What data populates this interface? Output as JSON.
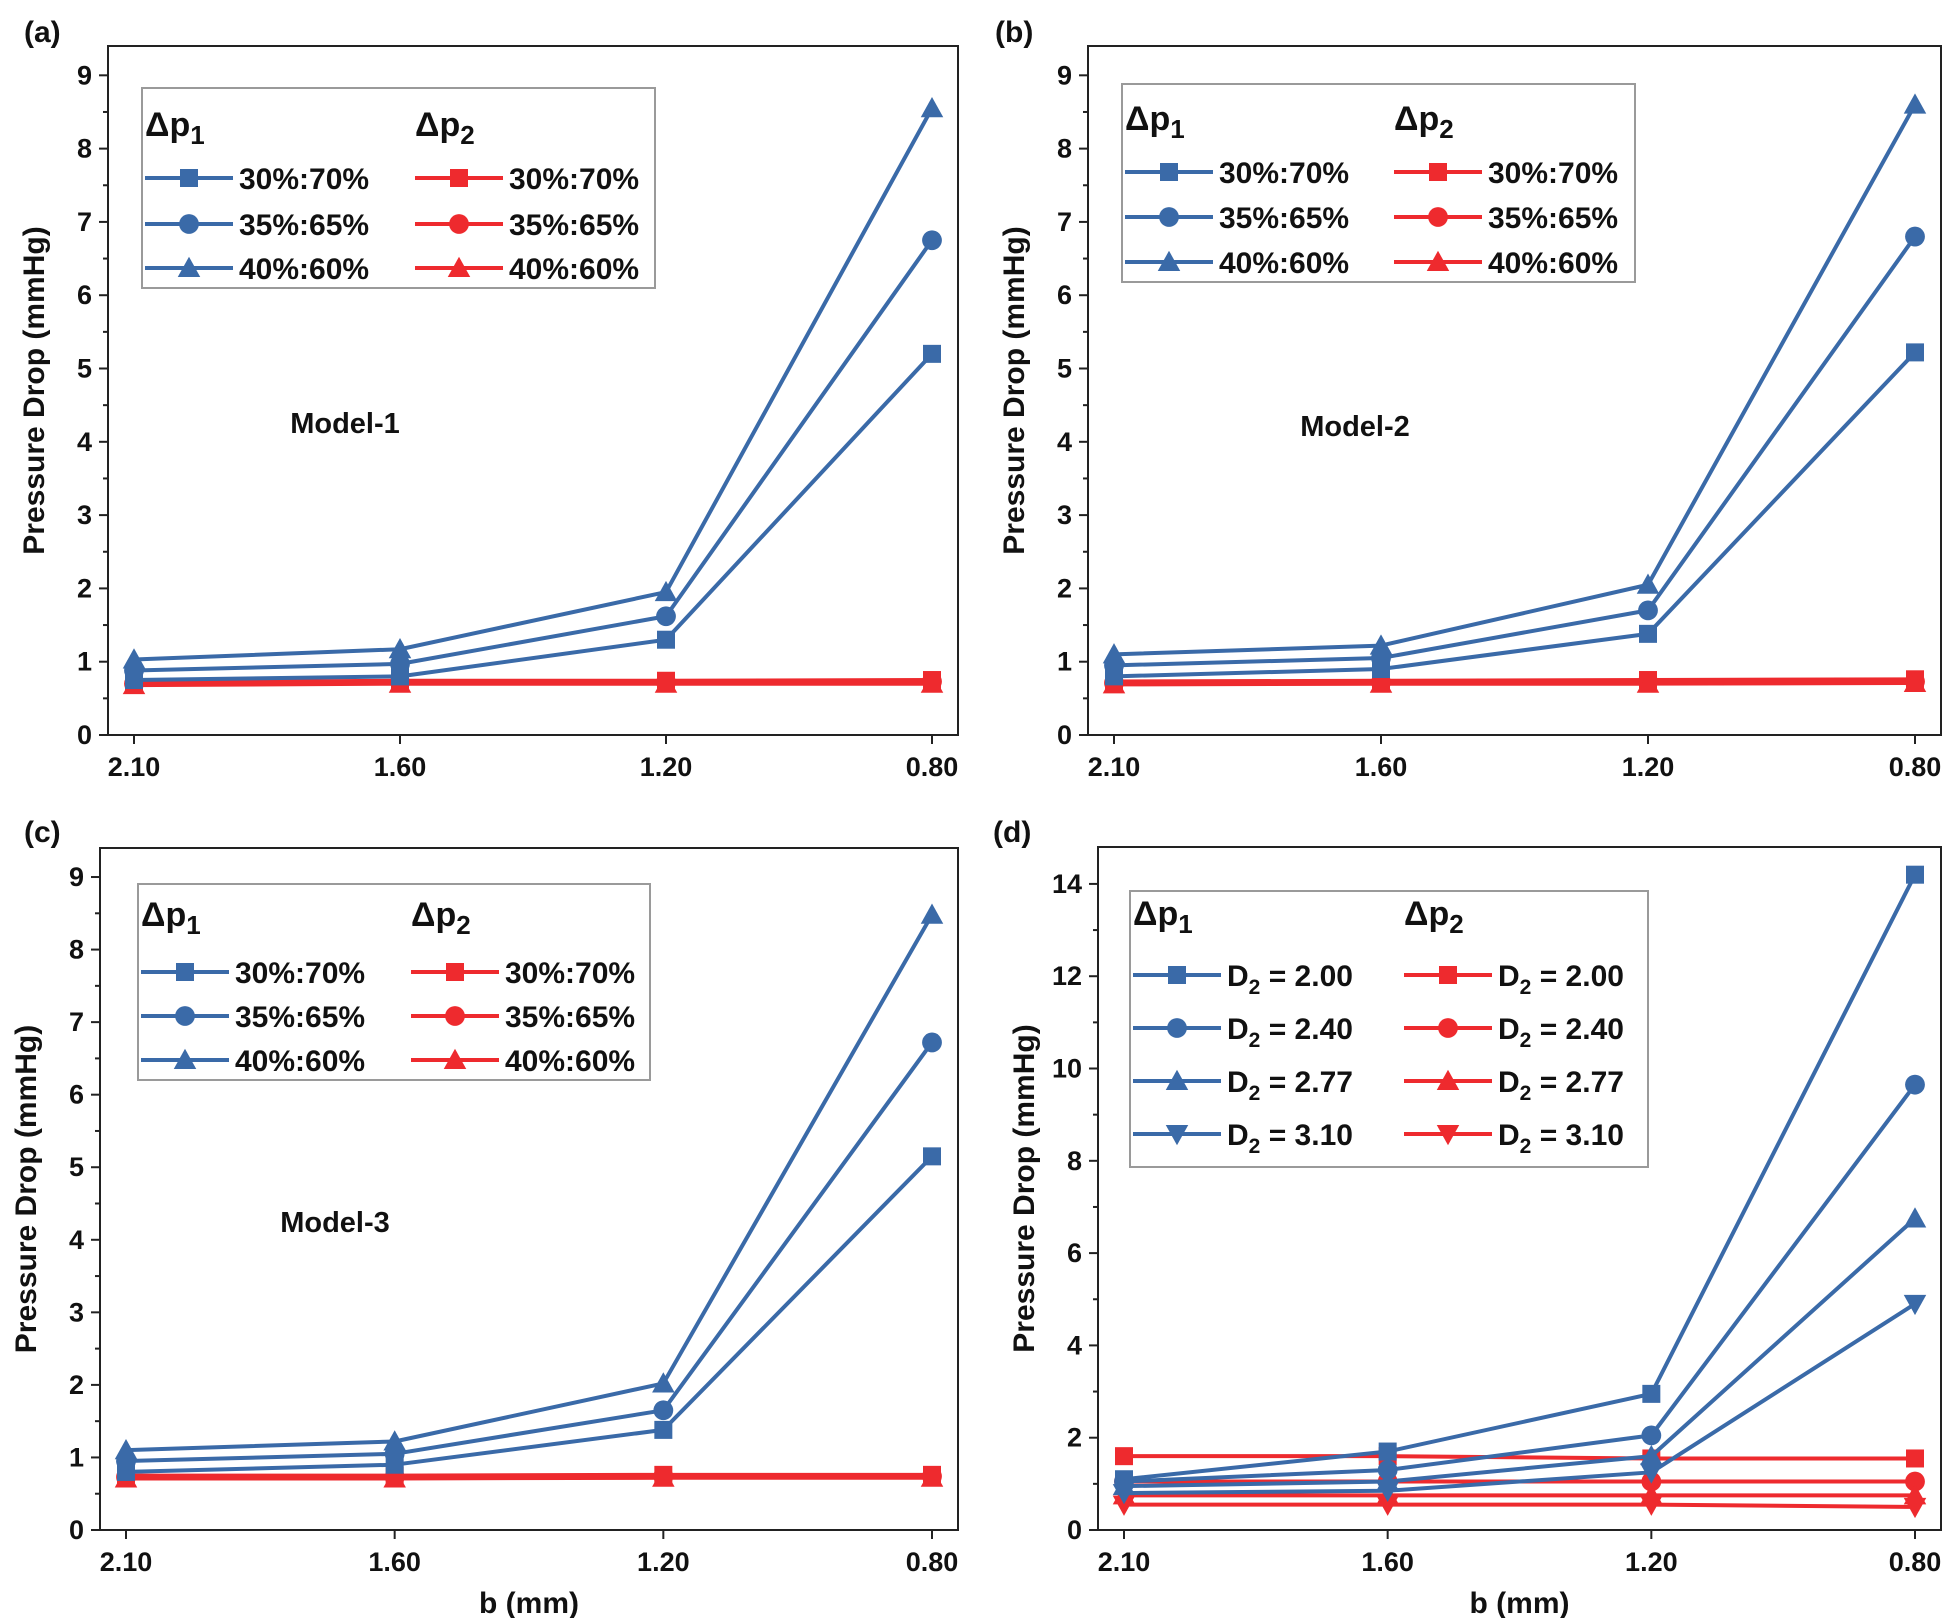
{
  "colors": {
    "blue": "#3a6aa8",
    "red": "#ee2a2e",
    "axis": "#222222",
    "legend_border": "#9a9a9a"
  },
  "chart_data": [
    {
      "id": "a",
      "type": "line",
      "panel_label": "(a)",
      "annotation": "Model-1",
      "xlabel": "b (mm)",
      "ylabel": "Pressure Drop (mmHg)",
      "categories": [
        "2.10",
        "1.60",
        "1.20",
        "0.80"
      ],
      "ylim": [
        0,
        9.4
      ],
      "yticks": [
        0,
        1,
        2,
        3,
        4,
        5,
        6,
        7,
        8,
        9
      ],
      "legend_titles": [
        "Δp",
        "Δp"
      ],
      "legend_title_subs": [
        "1",
        "2"
      ],
      "series": [
        {
          "name": "30%:70%",
          "group": "Δp1",
          "color": "blue",
          "marker": "square",
          "values": [
            0.75,
            0.8,
            1.3,
            5.2
          ]
        },
        {
          "name": "35%:65%",
          "group": "Δp1",
          "color": "blue",
          "marker": "circle",
          "values": [
            0.88,
            0.97,
            1.62,
            6.75
          ]
        },
        {
          "name": "40%:60%",
          "group": "Δp1",
          "color": "blue",
          "marker": "triangle",
          "values": [
            1.03,
            1.17,
            1.95,
            8.55
          ]
        },
        {
          "name": "30%:70%",
          "group": "Δp2",
          "color": "red",
          "marker": "square",
          "values": [
            0.72,
            0.74,
            0.74,
            0.75
          ]
        },
        {
          "name": "35%:65%",
          "group": "Δp2",
          "color": "red",
          "marker": "circle",
          "values": [
            0.7,
            0.72,
            0.72,
            0.73
          ]
        },
        {
          "name": "40%:60%",
          "group": "Δp2",
          "color": "red",
          "marker": "triangle",
          "values": [
            0.68,
            0.7,
            0.7,
            0.7
          ]
        }
      ]
    },
    {
      "id": "b",
      "type": "line",
      "panel_label": "(b)",
      "annotation": "Model-2",
      "xlabel": "b (mm)",
      "ylabel": "Pressure Drop (mmHg)",
      "categories": [
        "2.10",
        "1.60",
        "1.20",
        "0.80"
      ],
      "ylim": [
        0,
        9.4
      ],
      "yticks": [
        0,
        1,
        2,
        3,
        4,
        5,
        6,
        7,
        8,
        9
      ],
      "legend_titles": [
        "Δp",
        "Δp"
      ],
      "legend_title_subs": [
        "1",
        "2"
      ],
      "series": [
        {
          "name": "30%:70%",
          "group": "Δp1",
          "color": "blue",
          "marker": "square",
          "values": [
            0.8,
            0.9,
            1.38,
            5.22
          ]
        },
        {
          "name": "35%:65%",
          "group": "Δp1",
          "color": "blue",
          "marker": "circle",
          "values": [
            0.95,
            1.05,
            1.7,
            6.8
          ]
        },
        {
          "name": "40%:60%",
          "group": "Δp1",
          "color": "blue",
          "marker": "triangle",
          "values": [
            1.1,
            1.22,
            2.05,
            8.6
          ]
        },
        {
          "name": "30%:70%",
          "group": "Δp2",
          "color": "red",
          "marker": "square",
          "values": [
            0.73,
            0.74,
            0.75,
            0.76
          ]
        },
        {
          "name": "35%:65%",
          "group": "Δp2",
          "color": "red",
          "marker": "circle",
          "values": [
            0.71,
            0.72,
            0.73,
            0.73
          ]
        },
        {
          "name": "40%:60%",
          "group": "Δp2",
          "color": "red",
          "marker": "triangle",
          "values": [
            0.69,
            0.7,
            0.7,
            0.71
          ]
        }
      ]
    },
    {
      "id": "c",
      "type": "line",
      "panel_label": "(c)",
      "annotation": "Model-3",
      "xlabel": "b (mm)",
      "ylabel": "Pressure Drop (mmHg)",
      "categories": [
        "2.10",
        "1.60",
        "1.20",
        "0.80"
      ],
      "ylim": [
        0,
        9.4
      ],
      "yticks": [
        0,
        1,
        2,
        3,
        4,
        5,
        6,
        7,
        8,
        9
      ],
      "legend_titles": [
        "Δp",
        "Δp"
      ],
      "legend_title_subs": [
        "1",
        "2"
      ],
      "series": [
        {
          "name": "30%:70%",
          "group": "Δp1",
          "color": "blue",
          "marker": "square",
          "values": [
            0.8,
            0.9,
            1.38,
            5.15
          ]
        },
        {
          "name": "35%:65%",
          "group": "Δp1",
          "color": "blue",
          "marker": "circle",
          "values": [
            0.95,
            1.05,
            1.65,
            6.72
          ]
        },
        {
          "name": "40%:60%",
          "group": "Δp1",
          "color": "blue",
          "marker": "triangle",
          "values": [
            1.1,
            1.22,
            2.02,
            8.48
          ]
        },
        {
          "name": "30%:70%",
          "group": "Δp2",
          "color": "red",
          "marker": "square",
          "values": [
            0.75,
            0.75,
            0.76,
            0.76
          ]
        },
        {
          "name": "35%:65%",
          "group": "Δp2",
          "color": "red",
          "marker": "circle",
          "values": [
            0.73,
            0.73,
            0.74,
            0.74
          ]
        },
        {
          "name": "40%:60%",
          "group": "Δp2",
          "color": "red",
          "marker": "triangle",
          "values": [
            0.71,
            0.71,
            0.72,
            0.72
          ]
        }
      ]
    },
    {
      "id": "d",
      "type": "line",
      "panel_label": "(d)",
      "annotation": "",
      "xlabel": "b (mm)",
      "ylabel": "Pressure Drop (mmHg)",
      "categories": [
        "2.10",
        "1.60",
        "1.20",
        "0.80"
      ],
      "ylim": [
        0,
        14.8
      ],
      "yticks": [
        0,
        2,
        4,
        6,
        8,
        10,
        12,
        14
      ],
      "legend_titles": [
        "Δp",
        "Δp"
      ],
      "legend_title_subs": [
        "1",
        "2"
      ],
      "legend_prefix": "D",
      "legend_prefix_sub": "2",
      "series": [
        {
          "name": " = 2.00",
          "group": "Δp1",
          "color": "blue",
          "marker": "square",
          "values": [
            1.1,
            1.7,
            2.95,
            14.2
          ]
        },
        {
          "name": " = 2.40",
          "group": "Δp1",
          "color": "blue",
          "marker": "circle",
          "values": [
            1.05,
            1.3,
            2.05,
            9.65
          ]
        },
        {
          "name": " = 2.77",
          "group": "Δp1",
          "color": "blue",
          "marker": "triangle",
          "values": [
            0.95,
            1.05,
            1.6,
            6.75
          ]
        },
        {
          "name": " = 3.10",
          "group": "Δp1",
          "color": "blue",
          "marker": "triangledown",
          "values": [
            0.8,
            0.85,
            1.25,
            4.9
          ]
        },
        {
          "name": " = 2.00",
          "group": "Δp2",
          "color": "red",
          "marker": "square",
          "values": [
            1.6,
            1.6,
            1.55,
            1.55
          ]
        },
        {
          "name": " = 2.40",
          "group": "Δp2",
          "color": "red",
          "marker": "circle",
          "values": [
            1.05,
            1.05,
            1.05,
            1.05
          ]
        },
        {
          "name": " = 2.77",
          "group": "Δp2",
          "color": "red",
          "marker": "triangle",
          "values": [
            0.75,
            0.75,
            0.75,
            0.75
          ]
        },
        {
          "name": " = 3.10",
          "group": "Δp2",
          "color": "red",
          "marker": "triangledown",
          "values": [
            0.55,
            0.55,
            0.55,
            0.5
          ]
        }
      ]
    }
  ]
}
